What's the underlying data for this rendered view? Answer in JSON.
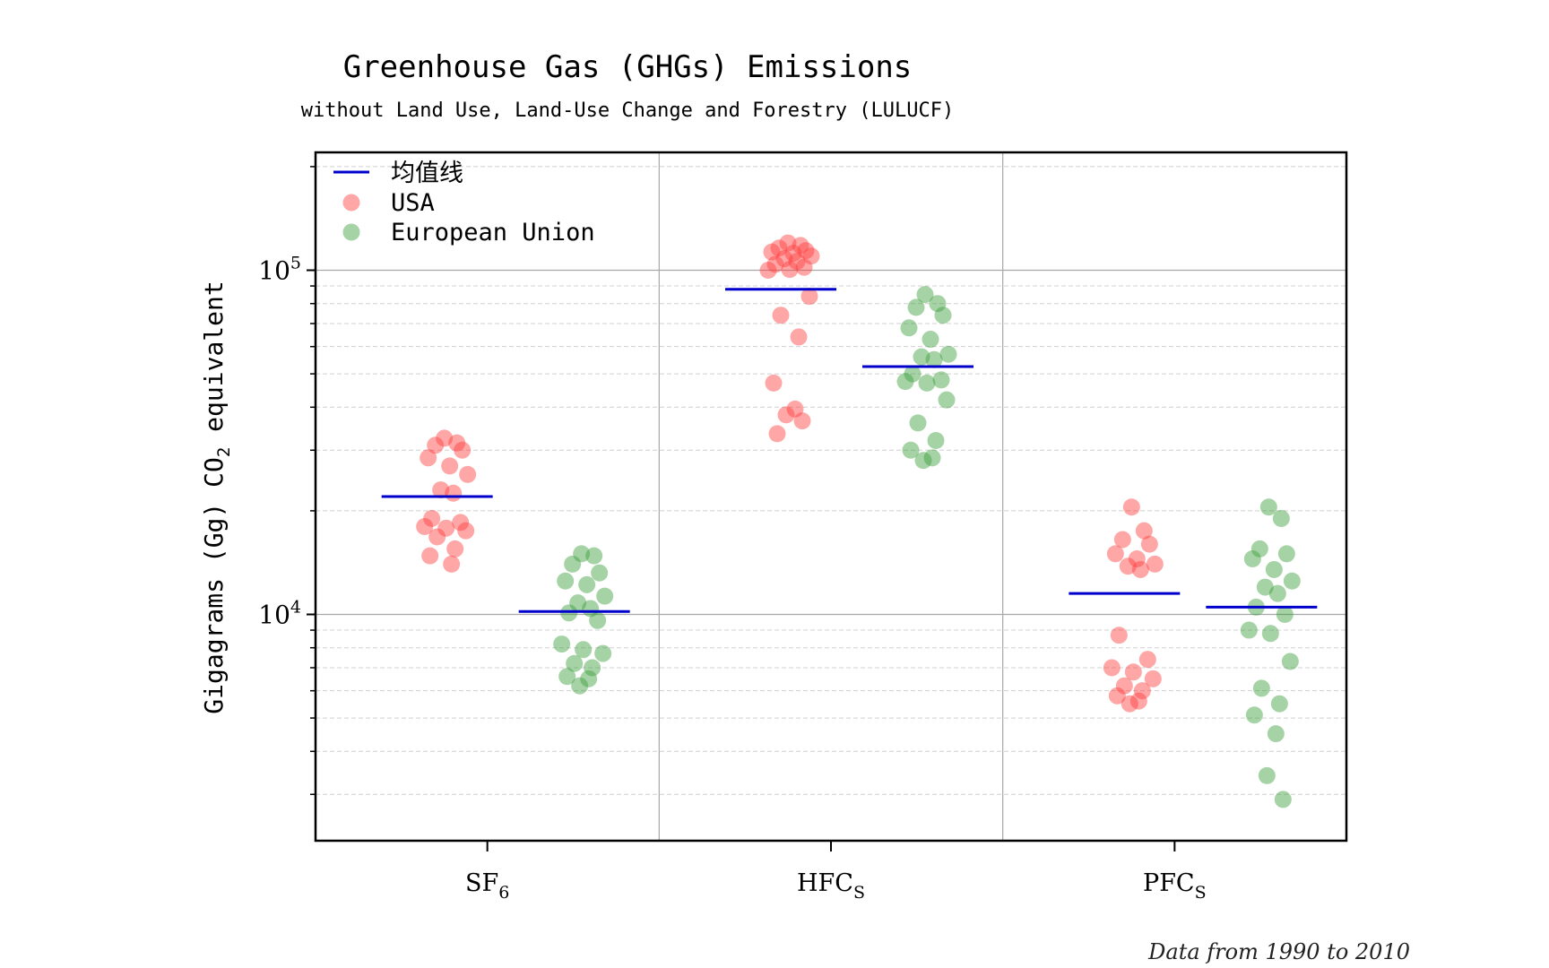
{
  "chart_data": {
    "type": "scatter",
    "title": "Greenhouse Gas (GHGs) Emissions",
    "subtitle": "without Land Use, Land-Use Change and Forestry (LULUCF)",
    "ylabel": "Gigagrams (Gg) CO2 equivalent",
    "ylabel_parts": {
      "pre": "Gigagrams (Gg) CO",
      "sub": "2",
      "post": " equivalent"
    },
    "yscale": "log",
    "ylim": [
      2200,
      220000
    ],
    "ytick_labels": [
      {
        "value": 10000,
        "base": "10",
        "exp": "4"
      },
      {
        "value": 100000,
        "base": "10",
        "exp": "5"
      }
    ],
    "categories": [
      {
        "base": "SF",
        "sub": "6"
      },
      {
        "base": "HFC",
        "sub": "S"
      },
      {
        "base": "PFC",
        "sub": "S"
      }
    ],
    "legend": {
      "position": "top-left",
      "mean_label": "均值线",
      "usa_label": "USA",
      "eu_label": "European Union"
    },
    "colors": {
      "usa": "#ff3b3b",
      "eu": "#3a9e3a",
      "mean": "#0000cc",
      "grid": "#b0b0b0"
    },
    "grid": true,
    "footnote": "Data from 1990 to 2010",
    "series": [
      {
        "name": "USA",
        "color": "#ff3b3b",
        "groups": [
          {
            "category": "SF6",
            "mean": 22000,
            "values": [
              32500,
              31500,
              31000,
              30000,
              28500,
              27000,
              25500,
              23000,
              22500,
              19000,
              18500,
              18000,
              17800,
              17500,
              16800,
              15500,
              14800,
              14000
            ]
          },
          {
            "category": "HFCs",
            "mean": 88000,
            "values": [
              120000,
              118000,
              116000,
              114000,
              113000,
              112000,
              110000,
              108000,
              106000,
              104000,
              102000,
              100000,
              100500,
              84000,
              74000,
              64000,
              47000,
              39500,
              38000,
              36500,
              33500
            ]
          },
          {
            "category": "PFCs",
            "mean": 11500,
            "values": [
              20500,
              17500,
              16500,
              16000,
              15000,
              14500,
              14000,
              13800,
              13500,
              8700,
              7400,
              7000,
              6800,
              6500,
              6200,
              6000,
              5800,
              5600,
              5500
            ]
          }
        ]
      },
      {
        "name": "European Union",
        "color": "#3a9e3a",
        "groups": [
          {
            "category": "SF6",
            "mean": 10200,
            "values": [
              15000,
              14800,
              14000,
              13200,
              12500,
              12200,
              11300,
              10800,
              10400,
              10100,
              9600,
              8200,
              7900,
              7700,
              7200,
              7000,
              6600,
              6500,
              6200
            ]
          },
          {
            "category": "HFCs",
            "mean": 52500,
            "values": [
              85000,
              80000,
              78000,
              74000,
              68000,
              63000,
              57000,
              56000,
              55000,
              50000,
              48000,
              47500,
              47000,
              42000,
              36000,
              32000,
              30000,
              28500,
              28000
            ]
          },
          {
            "category": "PFCs",
            "mean": 10500,
            "values": [
              20500,
              19000,
              15500,
              15000,
              14500,
              13500,
              12500,
              12000,
              11500,
              10500,
              10000,
              9000,
              8800,
              7300,
              6100,
              5500,
              5100,
              4500,
              3400,
              2900
            ]
          }
        ]
      }
    ]
  }
}
